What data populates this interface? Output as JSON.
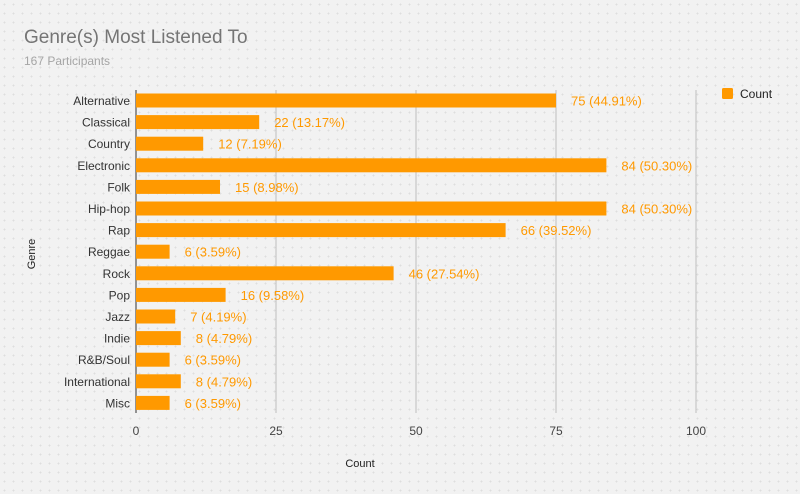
{
  "chart_data": {
    "type": "bar",
    "orientation": "horizontal",
    "title": "Genre(s) Most Listened To",
    "subtitle": "167 Participants",
    "xlabel": "Count",
    "ylabel": "Genre",
    "xlim": [
      0,
      100
    ],
    "xticks": [
      0,
      25,
      50,
      75,
      100
    ],
    "grid": true,
    "legend_position": "top-right",
    "bar_color": "#ff9900",
    "label_color": "#ff9900",
    "series": [
      {
        "name": "Count",
        "values": [
          75,
          22,
          12,
          84,
          15,
          84,
          66,
          6,
          46,
          16,
          7,
          8,
          6,
          8,
          6
        ]
      }
    ],
    "categories": [
      "Alternative",
      "Classical",
      "Country",
      "Electronic",
      "Folk",
      "Hip-hop",
      "Rap",
      "Reggae",
      "Rock",
      "Pop",
      "Jazz",
      "Indie",
      "R&B/Soul",
      "International",
      "Misc"
    ],
    "data_labels": [
      "75 (44.91%)",
      "22 (13.17%)",
      "12 (7.19%)",
      "84 (50.30%)",
      "15 (8.98%)",
      "84 (50.30%)",
      "66 (39.52%)",
      "6 (3.59%)",
      "46 (27.54%)",
      "16 (9.58%)",
      "7 (4.19%)",
      "8 (4.79%)",
      "6 (3.59%)",
      "8 (4.79%)",
      "6 (3.59%)"
    ]
  }
}
